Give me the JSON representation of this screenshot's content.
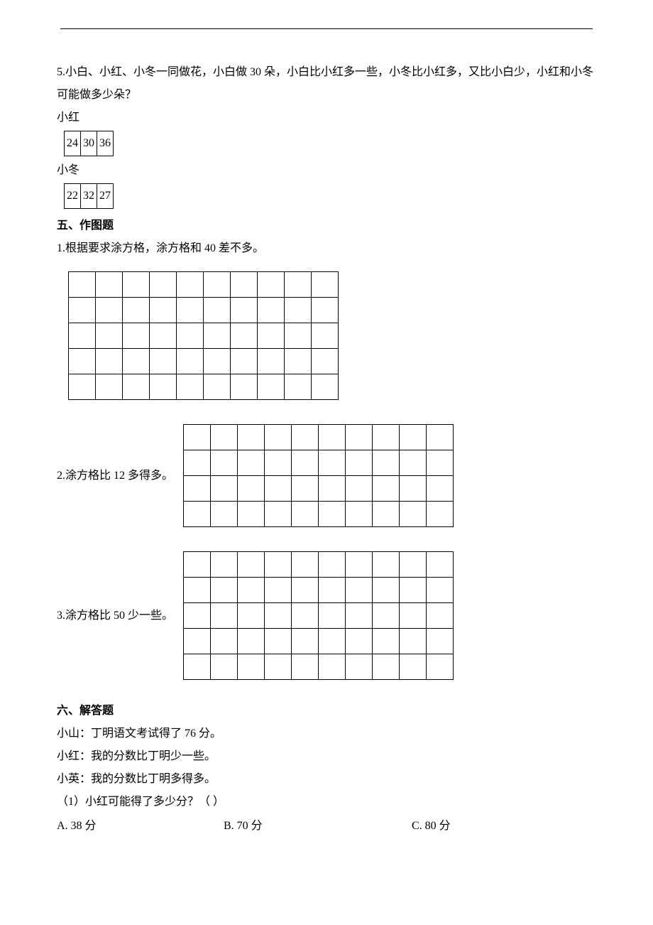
{
  "q5": {
    "text": "5.小白、小红、小冬一同做花，小白做 30 朵，小白比小红多一些，小冬比小红多，又比小白少，小红和小冬可能做多少朵？",
    "xh_label": "小红",
    "xh_cells": [
      "24",
      "30",
      "36"
    ],
    "xd_label": "小冬",
    "xd_cells": [
      "22",
      "32",
      "27"
    ]
  },
  "section5": {
    "title": "五、作图题"
  },
  "drawing": {
    "q1": {
      "text": "1.根据要求涂方格，涂方格和 40 差不多。",
      "rows": 5,
      "cols": 10
    },
    "q2": {
      "text": "2.涂方格比 12 多得多。",
      "rows": 4,
      "cols": 10
    },
    "q3": {
      "text": "3.涂方格比 50 少一些。",
      "rows": 5,
      "cols": 10
    }
  },
  "section6": {
    "title": "六、解答题"
  },
  "q6": {
    "line1": "小山：丁明语文考试得了 76 分。",
    "line2": "小红：我的分数比丁明少一些。",
    "line3": "小英：我的分数比丁明多得多。",
    "sub1": "（1）小红可能得了多少分？（   ）",
    "choice_a": "A. 38 分",
    "choice_b": "B. 70 分",
    "choice_c": "C. 80 分"
  }
}
